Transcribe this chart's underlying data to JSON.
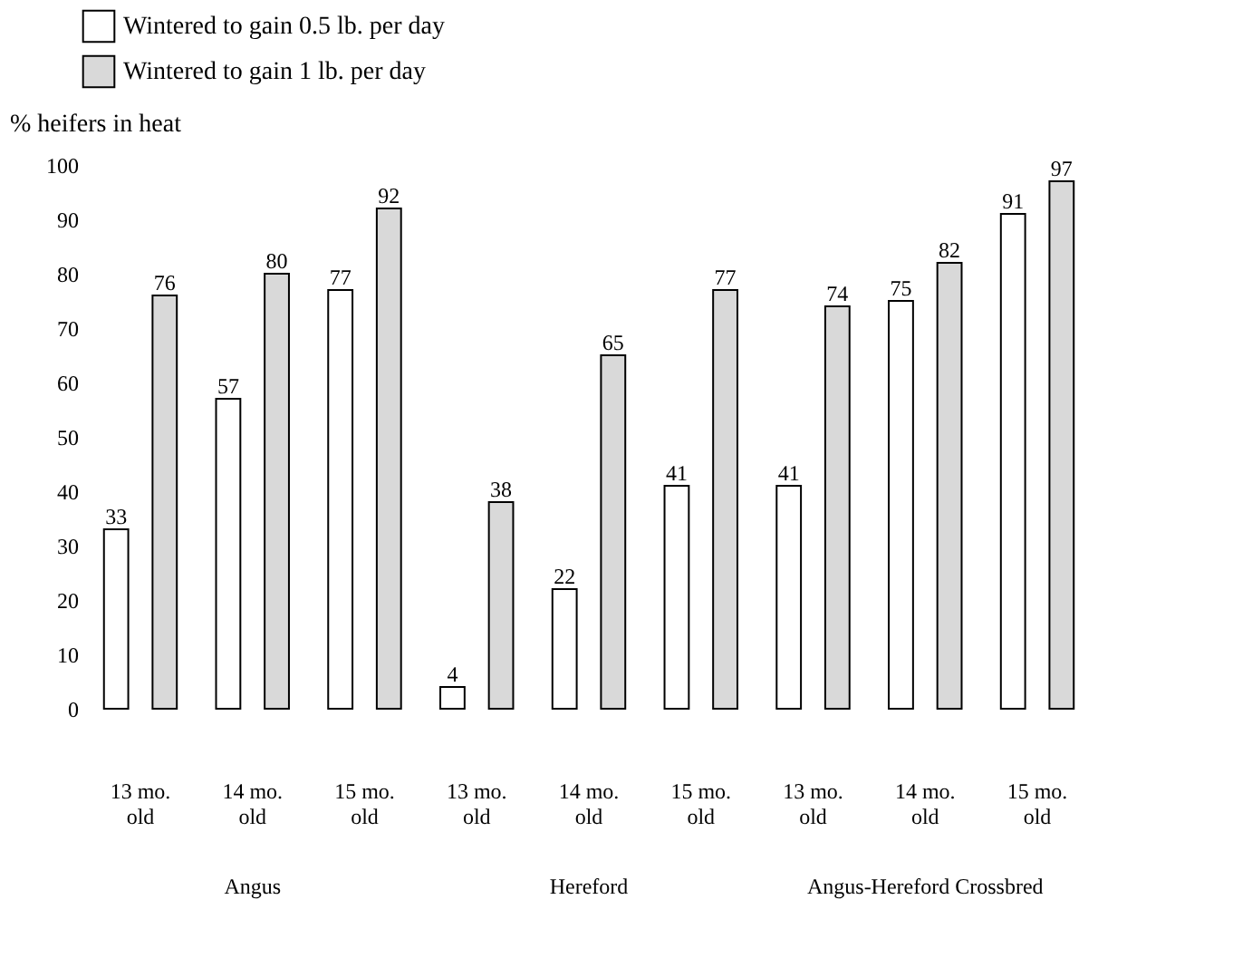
{
  "chart_data": {
    "type": "bar",
    "ylabel": "% heifers in heat",
    "categories": [
      "13 mo. old",
      "14 mo. old",
      "15 mo. old",
      "13 mo. old",
      "14 mo. old",
      "15 mo. old",
      "13 mo. old",
      "14 mo. old",
      "15 mo. old"
    ],
    "series": [
      {
        "name": "Wintered to gain 0.5 lb. per day",
        "color": "#ffffff",
        "values": [
          33,
          57,
          77,
          4,
          22,
          41,
          41,
          75,
          91
        ]
      },
      {
        "name": "Wintered to gain 1 lb. per day",
        "color": "#d9d9d9",
        "values": [
          76,
          80,
          92,
          38,
          65,
          77,
          74,
          82,
          97
        ]
      }
    ],
    "ylim": [
      0,
      100
    ],
    "yticks": [
      0,
      10,
      20,
      30,
      40,
      50,
      60,
      70,
      80,
      90,
      100
    ],
    "data_labels": true,
    "legend": "top",
    "grid": false,
    "annotations": [
      "Angus",
      "Hereford",
      "Angus-Hereford Crossbred"
    ]
  }
}
